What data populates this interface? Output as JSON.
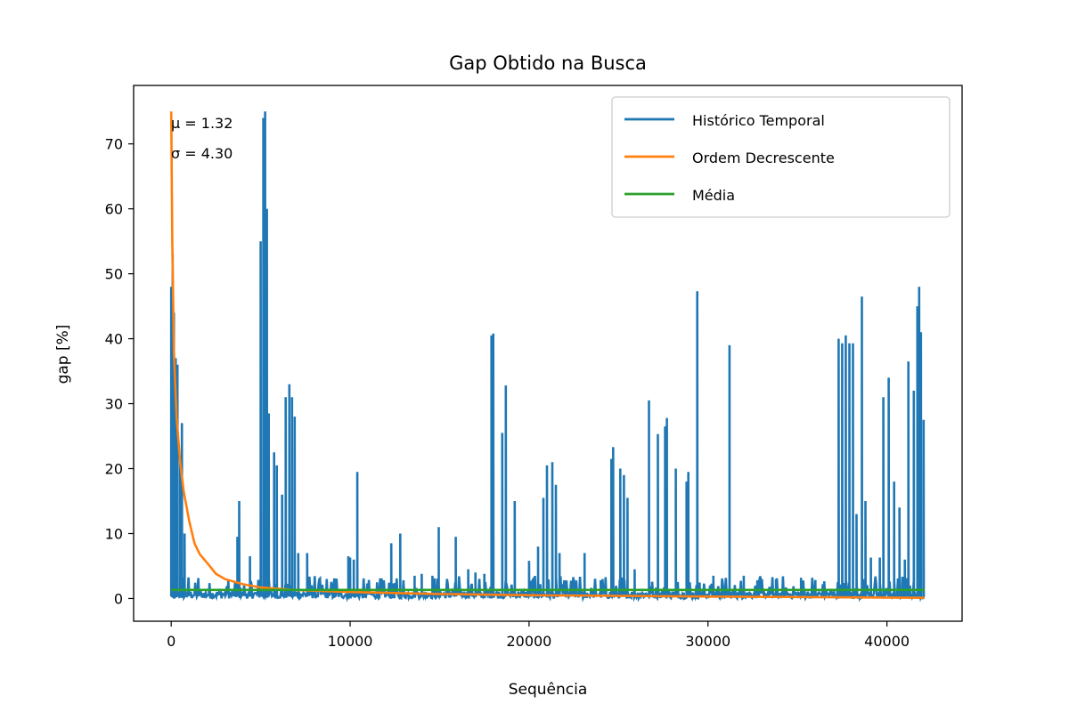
{
  "chart_data": {
    "type": "line",
    "title": "Gap Obtido na Busca",
    "xlabel": "Sequência",
    "ylabel": "gap [%]",
    "xlim": [
      -2100,
      44200
    ],
    "ylim": [
      -3.5,
      79
    ],
    "xticks": [
      0,
      10000,
      20000,
      30000,
      40000
    ],
    "yticks": [
      0,
      10,
      20,
      30,
      40,
      50,
      60,
      70
    ],
    "grid": false,
    "legend_position": "top-right",
    "annotations": [
      "μ = 1.32",
      "σ = 4.30"
    ],
    "series": [
      {
        "name": "Histórico Temporal",
        "color": "#1f77b4",
        "kind": "spiky-history",
        "x_max": 42100,
        "baseline_range": [
          0,
          2.5
        ],
        "peaks": [
          [
            0,
            48
          ],
          [
            80,
            53
          ],
          [
            150,
            44
          ],
          [
            250,
            37
          ],
          [
            350,
            36
          ],
          [
            500,
            22
          ],
          [
            600,
            27
          ],
          [
            750,
            10
          ],
          [
            3700,
            9.5
          ],
          [
            3800,
            15
          ],
          [
            4400,
            6.5
          ],
          [
            5000,
            55
          ],
          [
            5150,
            74
          ],
          [
            5250,
            75
          ],
          [
            5350,
            60
          ],
          [
            5450,
            28.5
          ],
          [
            5750,
            22.5
          ],
          [
            5900,
            20.5
          ],
          [
            6200,
            16
          ],
          [
            6400,
            31
          ],
          [
            6600,
            33
          ],
          [
            6750,
            31
          ],
          [
            6900,
            28
          ],
          [
            7100,
            7
          ],
          [
            7600,
            7
          ],
          [
            9900,
            6.5
          ],
          [
            10000,
            6.3
          ],
          [
            10200,
            6
          ],
          [
            10400,
            19.5
          ],
          [
            12300,
            8.5
          ],
          [
            12800,
            10
          ],
          [
            13600,
            3.5
          ],
          [
            14000,
            3.8
          ],
          [
            14600,
            3.5
          ],
          [
            14950,
            11
          ],
          [
            15900,
            9.5
          ],
          [
            16600,
            4.5
          ],
          [
            17000,
            4
          ],
          [
            17500,
            3.8
          ],
          [
            17900,
            40.5
          ],
          [
            18000,
            40.8
          ],
          [
            18500,
            25.5
          ],
          [
            18700,
            32.8
          ],
          [
            19200,
            15
          ],
          [
            20000,
            5.8
          ],
          [
            20500,
            8
          ],
          [
            20800,
            15.5
          ],
          [
            21000,
            20.5
          ],
          [
            21300,
            21
          ],
          [
            21500,
            17.5
          ],
          [
            21700,
            7
          ],
          [
            22500,
            3
          ],
          [
            23100,
            7
          ],
          [
            24000,
            2.8
          ],
          [
            24600,
            21.5
          ],
          [
            24700,
            23.3
          ],
          [
            25100,
            20
          ],
          [
            25300,
            19
          ],
          [
            25500,
            15.5
          ],
          [
            25900,
            4.5
          ],
          [
            26700,
            30.5
          ],
          [
            27200,
            25.3
          ],
          [
            27600,
            26.5
          ],
          [
            27700,
            27.8
          ],
          [
            28200,
            20
          ],
          [
            28800,
            18
          ],
          [
            28900,
            19.5
          ],
          [
            29400,
            47.3
          ],
          [
            30300,
            3.5
          ],
          [
            31200,
            39
          ],
          [
            32000,
            3.5
          ],
          [
            33800,
            3
          ],
          [
            35200,
            3.2
          ],
          [
            36000,
            2.8
          ],
          [
            37300,
            40
          ],
          [
            37500,
            39.3
          ],
          [
            37700,
            40.5
          ],
          [
            37900,
            39.3
          ],
          [
            38100,
            39.3
          ],
          [
            38300,
            13
          ],
          [
            38600,
            46.5
          ],
          [
            38800,
            15
          ],
          [
            39100,
            6.3
          ],
          [
            39600,
            6.3
          ],
          [
            39800,
            31
          ],
          [
            40100,
            34
          ],
          [
            40400,
            18
          ],
          [
            40700,
            14
          ],
          [
            41000,
            6
          ],
          [
            41200,
            36.5
          ],
          [
            41500,
            32
          ],
          [
            41700,
            45
          ],
          [
            41800,
            48
          ],
          [
            41900,
            41
          ],
          [
            42050,
            27.5
          ]
        ]
      },
      {
        "name": "Ordem Decrescente",
        "color": "#ff7f0e",
        "points": [
          [
            0,
            75
          ],
          [
            60,
            55
          ],
          [
            150,
            38
          ],
          [
            300,
            28
          ],
          [
            500,
            21
          ],
          [
            700,
            16.5
          ],
          [
            1000,
            12
          ],
          [
            1300,
            8.5
          ],
          [
            1600,
            6.8
          ],
          [
            2000,
            5.5
          ],
          [
            2500,
            3.8
          ],
          [
            3000,
            3
          ],
          [
            4000,
            2.2
          ],
          [
            5000,
            1.7
          ],
          [
            7000,
            1.3
          ],
          [
            10000,
            1
          ],
          [
            15000,
            0.7
          ],
          [
            20000,
            0.5
          ],
          [
            30000,
            0.3
          ],
          [
            40000,
            0.15
          ],
          [
            42100,
            0.1
          ]
        ]
      },
      {
        "name": "Média",
        "color": "#2ca02c",
        "points": [
          [
            0,
            1.32
          ],
          [
            42100,
            1.32
          ]
        ]
      }
    ]
  }
}
